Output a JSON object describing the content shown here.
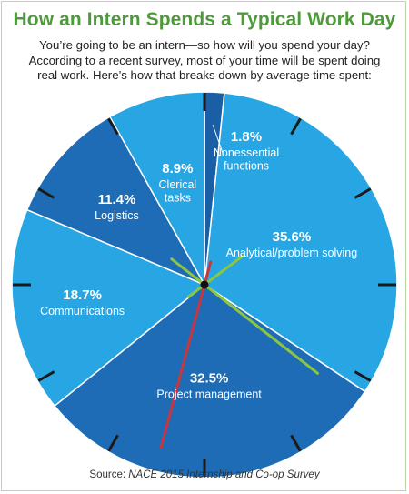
{
  "header": {
    "title": "How an Intern Spends a Typical Work Day",
    "subtitle_lines": [
      "You’re going to be an intern—so how will you spend your day?",
      "According to a recent survey, most of your time will be spent doing",
      "real work. Here’s how that breaks down by average time spent:"
    ]
  },
  "chart_data": {
    "type": "pie",
    "title": "How an Intern Spends a Typical Work Day",
    "unit": "%",
    "slices": [
      {
        "label": "Nonessential functions",
        "label_lines": [
          "Nonessential",
          "functions"
        ],
        "value": 1.8,
        "value_label": "1.8%",
        "color": "#1a5fa6"
      },
      {
        "label": "Analytical/problem solving",
        "label_lines": [
          "Analytical/problem solving"
        ],
        "value": 35.6,
        "value_label": "35.6%",
        "color": "#27a6e3"
      },
      {
        "label": "Project management",
        "label_lines": [
          "Project management"
        ],
        "value": 32.5,
        "value_label": "32.5%",
        "color": "#1d6cb5"
      },
      {
        "label": "Communications",
        "label_lines": [
          "Communications"
        ],
        "value": 18.7,
        "value_label": "18.7%",
        "color": "#27a6e3"
      },
      {
        "label": "Logistics",
        "label_lines": [
          "Logistics"
        ],
        "value": 11.4,
        "value_label": "11.4%",
        "color": "#1d6cb5"
      },
      {
        "label": "Clerical tasks",
        "label_lines": [
          "Clerical",
          "tasks"
        ],
        "value": 8.9,
        "value_label": "8.9%",
        "color": "#27a6e3"
      }
    ],
    "colors": {
      "title_green": "#4e9a3b",
      "hand_green": "#8cc63f",
      "hand_red": "#c8363f",
      "tick": "#1a1a1a",
      "divider": "#ffffff"
    }
  },
  "footer": {
    "source_prefix": "Source: ",
    "source_org": "NACE 2015 Internship and Co-op Survey"
  }
}
